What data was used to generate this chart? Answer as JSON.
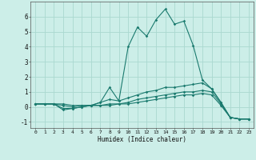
{
  "xlabel": "Humidex (Indice chaleur)",
  "ylabel": "",
  "bg_color": "#cceee8",
  "line_color": "#1a7a6e",
  "grid_color": "#aad8d0",
  "xlim": [
    -0.5,
    23.5
  ],
  "ylim": [
    -1.4,
    7.0
  ],
  "xticks": [
    0,
    1,
    2,
    3,
    4,
    5,
    6,
    7,
    8,
    9,
    10,
    11,
    12,
    13,
    14,
    15,
    16,
    17,
    18,
    19,
    20,
    21,
    22,
    23
  ],
  "yticks": [
    -1,
    0,
    1,
    2,
    3,
    4,
    5,
    6
  ],
  "series": [
    [
      0.2,
      0.2,
      0.2,
      0.2,
      0.1,
      0.1,
      0.1,
      0.3,
      1.3,
      0.4,
      4.0,
      5.3,
      4.7,
      5.8,
      6.5,
      5.5,
      5.7,
      4.1,
      1.8,
      1.2,
      0.3,
      -0.7,
      -0.8,
      -0.8
    ],
    [
      0.2,
      0.2,
      0.2,
      0.1,
      0.0,
      0.1,
      0.1,
      0.3,
      0.5,
      0.4,
      0.6,
      0.8,
      1.0,
      1.1,
      1.3,
      1.3,
      1.4,
      1.5,
      1.6,
      1.2,
      0.3,
      -0.7,
      -0.8,
      -0.8
    ],
    [
      0.2,
      0.2,
      0.2,
      -0.2,
      -0.1,
      0.0,
      0.1,
      0.1,
      0.2,
      0.2,
      0.3,
      0.5,
      0.6,
      0.7,
      0.8,
      0.9,
      1.0,
      1.0,
      1.1,
      1.0,
      0.2,
      -0.7,
      -0.8,
      -0.8
    ],
    [
      0.2,
      0.2,
      0.2,
      -0.1,
      -0.1,
      0.0,
      0.1,
      0.1,
      0.1,
      0.2,
      0.2,
      0.3,
      0.4,
      0.5,
      0.6,
      0.7,
      0.8,
      0.8,
      0.9,
      0.8,
      0.1,
      -0.7,
      -0.8,
      -0.8
    ]
  ]
}
